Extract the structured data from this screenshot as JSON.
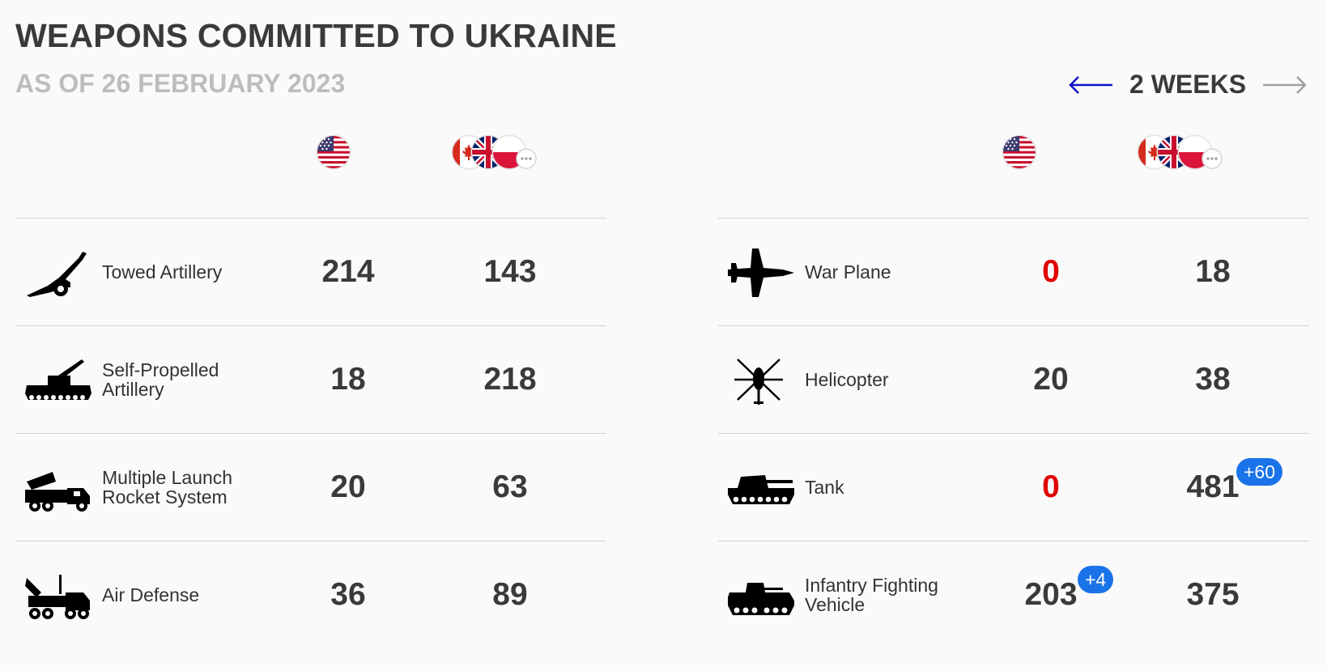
{
  "header": {
    "title": "WEAPONS COMMITTED TO UKRAINE",
    "subtitle": "AS OF 26 FEBRUARY 2023"
  },
  "nav": {
    "period": "2 WEEKS",
    "prev_icon": "left-arrow-icon",
    "next_icon": "right-arrow-icon",
    "prev_color": "#1010c8",
    "next_color": "#a0a0a0"
  },
  "columns": {
    "us_flag": "us-flag-icon",
    "allies_flags": [
      "canada-flag-icon",
      "uk-flag-icon",
      "poland-flag-icon",
      "more-icon"
    ]
  },
  "left": [
    {
      "label": "Towed Artillery",
      "icon": "towed-artillery-icon",
      "us": "214",
      "allies": "143",
      "us_badge": "",
      "allies_badge": ""
    },
    {
      "label": "Self-Propelled Artillery",
      "icon": "self-propelled-artillery-icon",
      "us": "18",
      "allies": "218",
      "us_badge": "",
      "allies_badge": ""
    },
    {
      "label": "Multiple Launch Rocket System",
      "icon": "rocket-launcher-icon",
      "us": "20",
      "allies": "63",
      "us_badge": "",
      "allies_badge": ""
    },
    {
      "label": "Air Defense",
      "icon": "air-defense-icon",
      "us": "36",
      "allies": "89",
      "us_badge": "",
      "allies_badge": ""
    }
  ],
  "right": [
    {
      "label": "War Plane",
      "icon": "war-plane-icon",
      "us": "0",
      "allies": "18",
      "us_badge": "",
      "allies_badge": ""
    },
    {
      "label": "Helicopter",
      "icon": "helicopter-icon",
      "us": "20",
      "allies": "38",
      "us_badge": "",
      "allies_badge": ""
    },
    {
      "label": "Tank",
      "icon": "tank-icon",
      "us": "0",
      "allies": "481",
      "us_badge": "",
      "allies_badge": "+60"
    },
    {
      "label": "Infantry Fighting Vehicle",
      "icon": "infantry-fighting-vehicle-icon",
      "us": "203",
      "allies": "375",
      "us_badge": "+4",
      "allies_badge": ""
    }
  ],
  "colors": {
    "zero_value": "#e00000",
    "badge": "#1a73e8",
    "divider": "#d2d2d2"
  }
}
